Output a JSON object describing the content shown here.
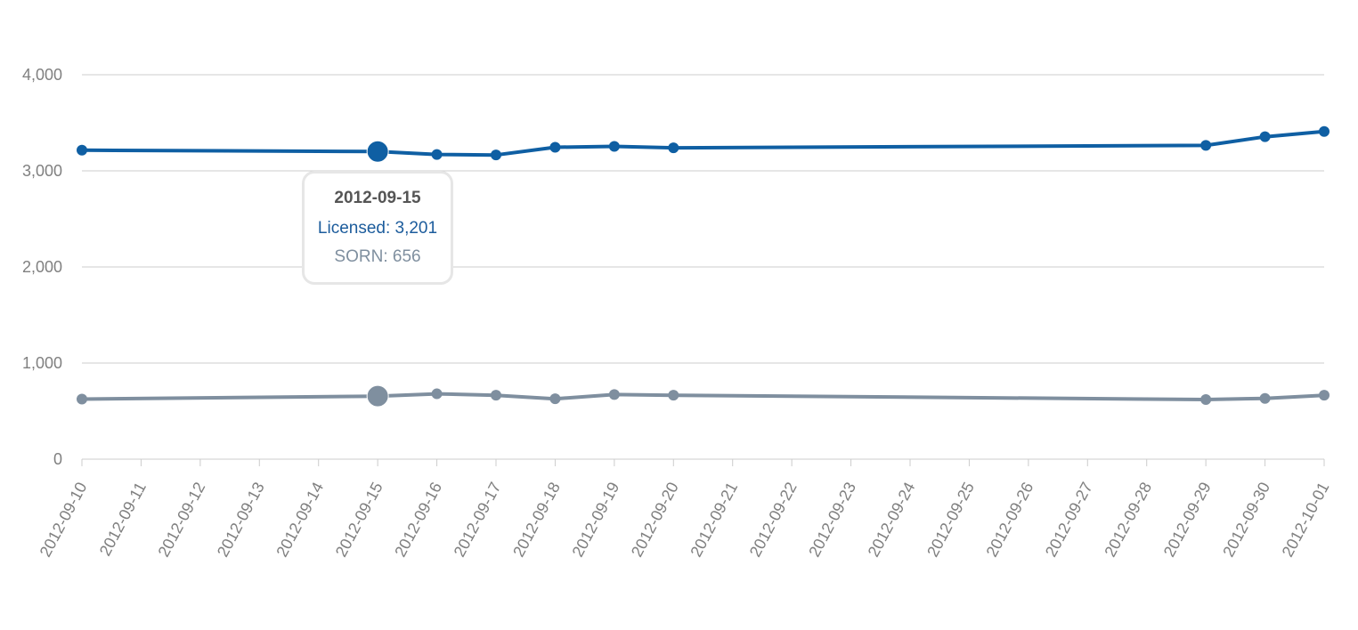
{
  "colors": {
    "licensed": "#0f5fa3",
    "sorn": "#7f8f9f",
    "grid": "#cccccc",
    "tick_text": "#808080"
  },
  "chart_data": {
    "type": "line",
    "x": [
      "2012-09-10",
      "2012-09-11",
      "2012-09-12",
      "2012-09-13",
      "2012-09-14",
      "2012-09-15",
      "2012-09-16",
      "2012-09-17",
      "2012-09-18",
      "2012-09-19",
      "2012-09-20",
      "2012-09-21",
      "2012-09-22",
      "2012-09-23",
      "2012-09-24",
      "2012-09-25",
      "2012-09-26",
      "2012-09-27",
      "2012-09-28",
      "2012-09-29",
      "2012-09-30",
      "2012-10-01"
    ],
    "yticks": [
      "0",
      "1,000",
      "2,000",
      "3,000",
      "4,000"
    ],
    "ylim": [
      0,
      4000
    ],
    "grid": true,
    "series": [
      {
        "name": "Licensed",
        "points": [
          [
            "2012-09-10",
            3215
          ],
          [
            "2012-09-15",
            3201
          ],
          [
            "2012-09-16",
            3170
          ],
          [
            "2012-09-17",
            3165
          ],
          [
            "2012-09-18",
            3245
          ],
          [
            "2012-09-19",
            3255
          ],
          [
            "2012-09-20",
            3240
          ],
          [
            "2012-09-29",
            3265
          ],
          [
            "2012-09-30",
            3355
          ],
          [
            "2012-10-01",
            3410
          ]
        ]
      },
      {
        "name": "SORN",
        "points": [
          [
            "2012-09-10",
            625
          ],
          [
            "2012-09-15",
            656
          ],
          [
            "2012-09-16",
            680
          ],
          [
            "2012-09-17",
            665
          ],
          [
            "2012-09-18",
            628
          ],
          [
            "2012-09-19",
            672
          ],
          [
            "2012-09-20",
            665
          ],
          [
            "2012-09-29",
            620
          ],
          [
            "2012-09-30",
            632
          ],
          [
            "2012-10-01",
            665
          ]
        ]
      }
    ],
    "highlight": "2012-09-15"
  },
  "tooltip": {
    "date": "2012-09-15",
    "licensed_text": "Licensed: 3,201",
    "sorn_text": "SORN: 656"
  }
}
